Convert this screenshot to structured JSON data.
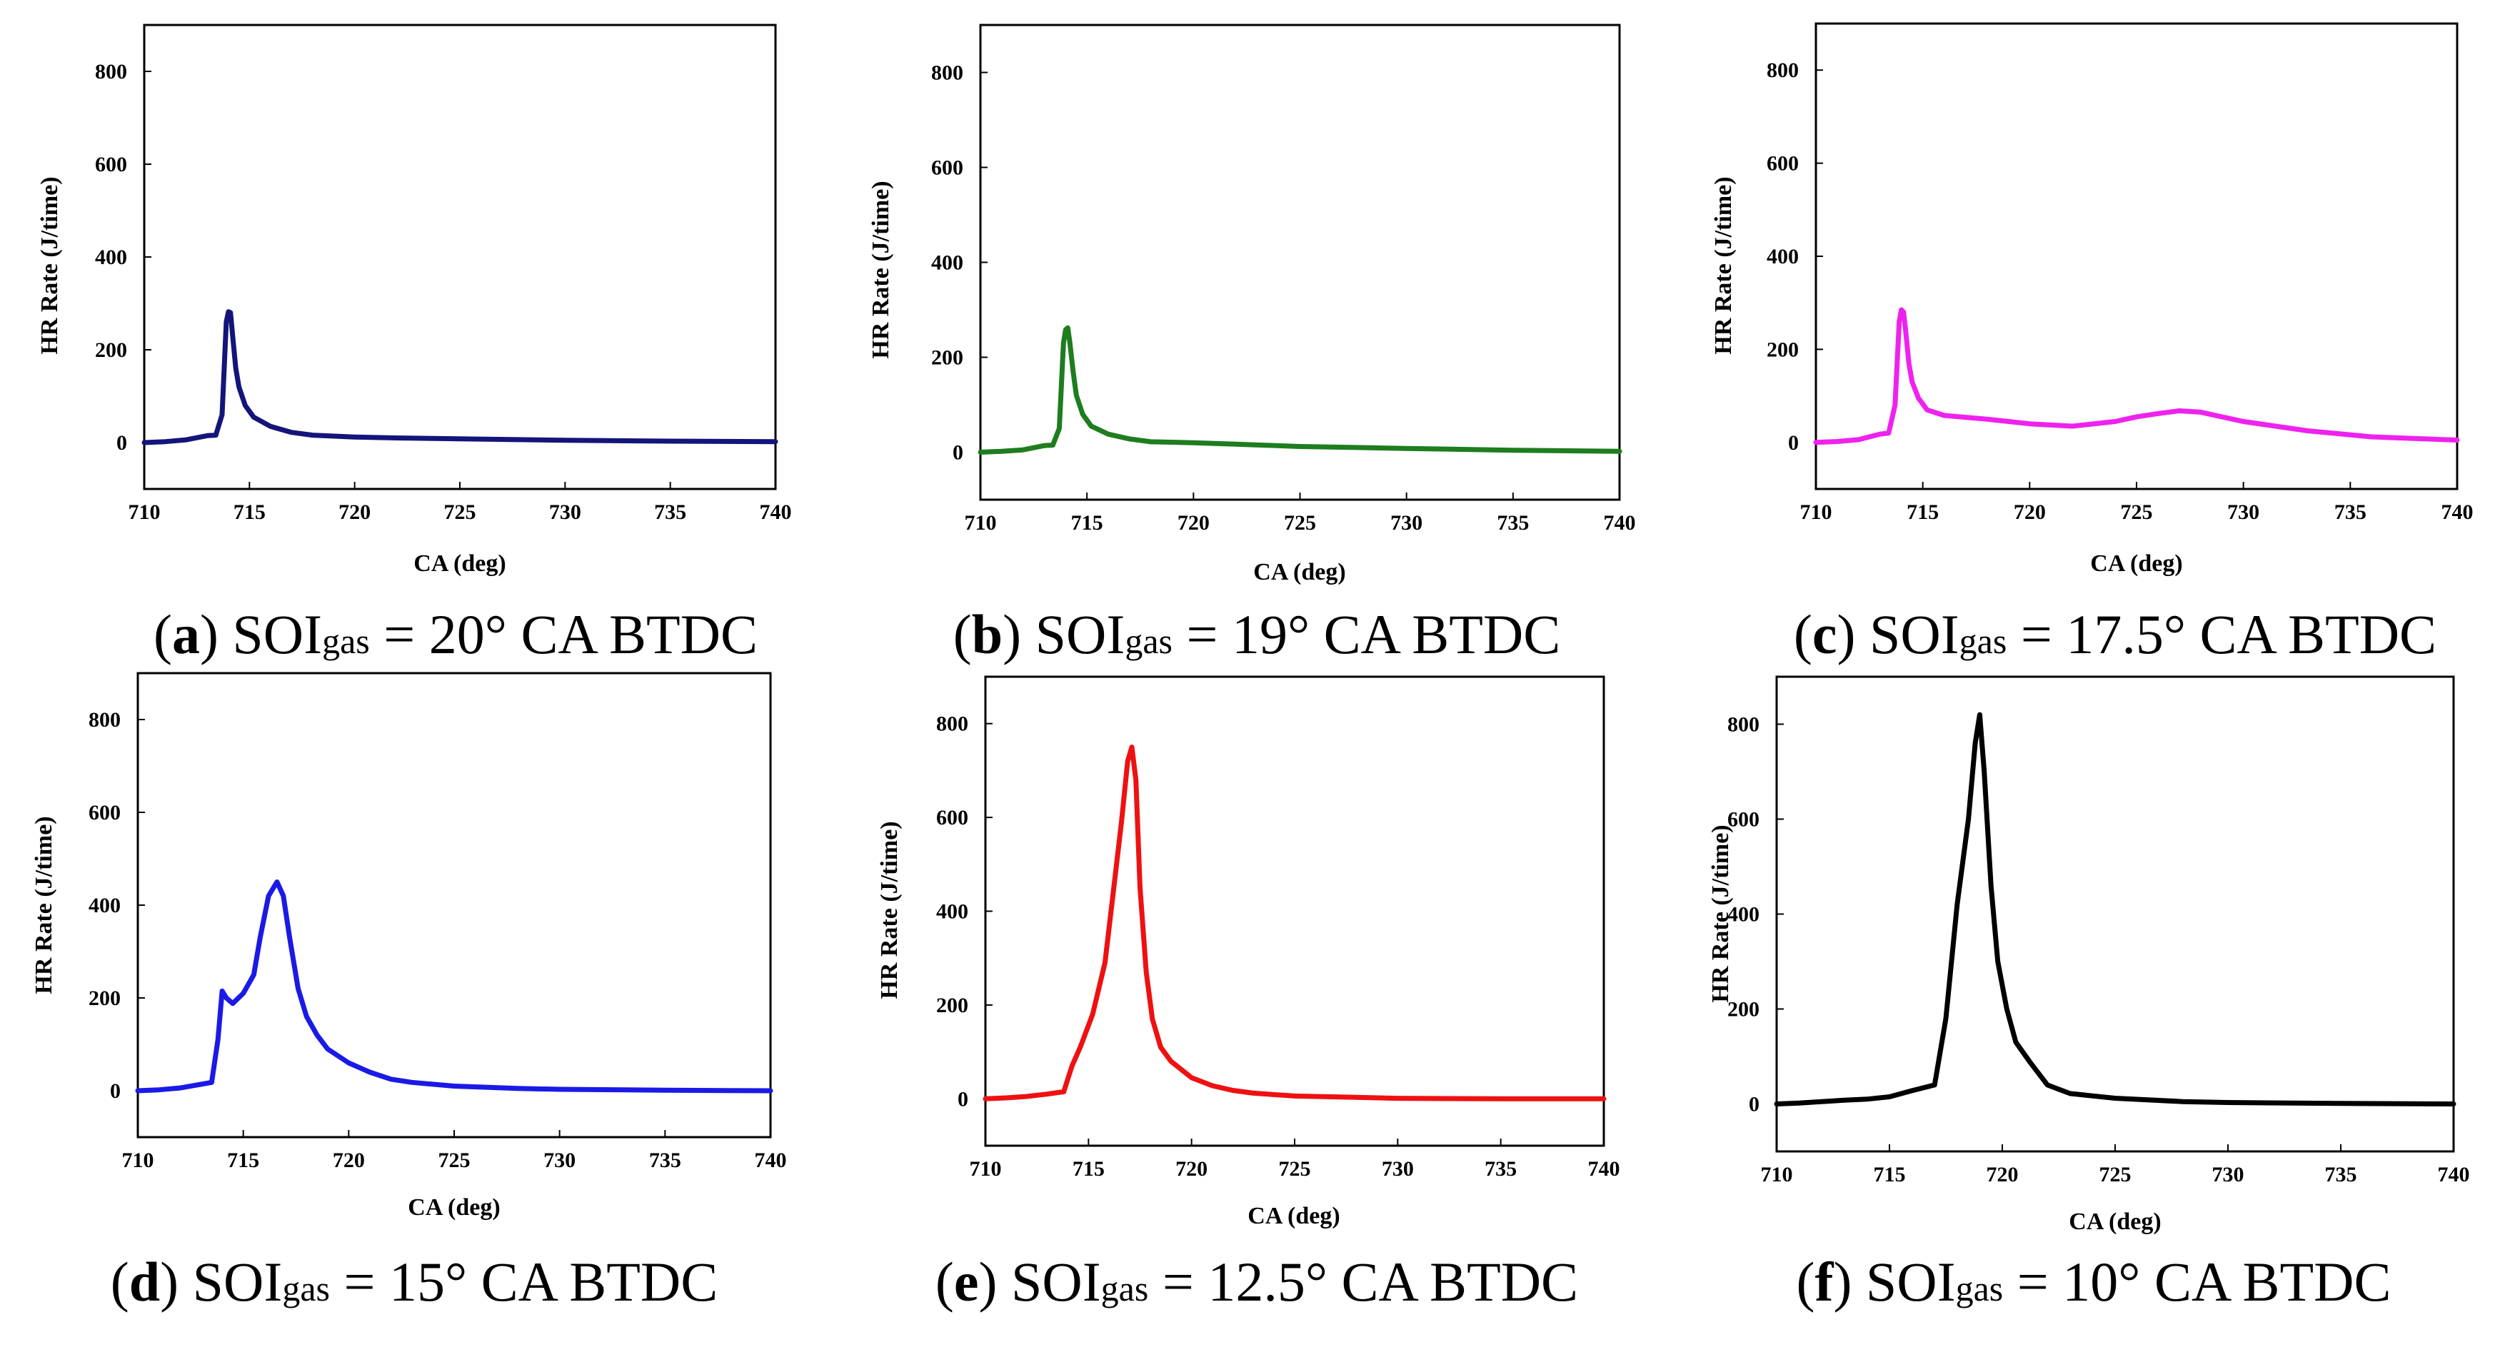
{
  "chart_data": [
    {
      "type": "line",
      "panel": "a",
      "caption": {
        "letter": "a",
        "main": "SOI",
        "sub": "gas",
        "rest": " = 20° CA BTDC"
      },
      "xlabel": "CA (deg)",
      "ylabel": "HR Rate (J/time)",
      "xlim": [
        710,
        740
      ],
      "ylim": [
        -100,
        900
      ],
      "xticks": [
        710,
        715,
        720,
        725,
        730,
        735,
        740
      ],
      "yticks": [
        0,
        200,
        400,
        600,
        800
      ],
      "color": "#14147a",
      "series": [
        {
          "name": "SOIgas = 20° CA BTDC",
          "x": [
            710,
            711,
            712,
            713,
            713.4,
            713.7,
            713.9,
            714.0,
            714.1,
            714.2,
            714.35,
            714.5,
            714.8,
            715.2,
            716,
            717,
            718,
            720,
            722,
            725,
            730,
            735,
            740
          ],
          "y": [
            0,
            2,
            6,
            15,
            16,
            60,
            260,
            282,
            280,
            230,
            160,
            120,
            80,
            55,
            35,
            22,
            16,
            12,
            10,
            8,
            5,
            3,
            2
          ]
        }
      ]
    },
    {
      "type": "line",
      "panel": "b",
      "caption": {
        "letter": "b",
        "main": "SOI",
        "sub": "gas",
        "rest": " = 19° CA BTDC"
      },
      "xlabel": "CA (deg)",
      "ylabel": "HR Rate (J/time)",
      "xlim": [
        710,
        740
      ],
      "ylim": [
        -100,
        900
      ],
      "xticks": [
        710,
        715,
        720,
        725,
        730,
        735,
        740
      ],
      "yticks": [
        0,
        200,
        400,
        600,
        800
      ],
      "color": "#1e7d1e",
      "series": [
        {
          "name": "SOIgas = 19° CA BTDC",
          "x": [
            710,
            711,
            712,
            713,
            713.4,
            713.7,
            713.9,
            714.0,
            714.1,
            714.2,
            714.35,
            714.5,
            714.8,
            715.2,
            716,
            717,
            718,
            720,
            722,
            725,
            730,
            735,
            740
          ],
          "y": [
            0,
            2,
            5,
            14,
            15,
            50,
            230,
            258,
            262,
            230,
            170,
            120,
            80,
            55,
            38,
            28,
            22,
            20,
            17,
            12,
            8,
            4,
            2
          ]
        }
      ]
    },
    {
      "type": "line",
      "panel": "c",
      "caption": {
        "letter": "c",
        "main": "SOI",
        "sub": "gas",
        "rest": " = 17.5° CA BTDC"
      },
      "xlabel": "CA (deg)",
      "ylabel": "HR Rate (J/time)",
      "xlim": [
        710,
        740
      ],
      "ylim": [
        -100,
        900
      ],
      "xticks": [
        710,
        715,
        720,
        725,
        730,
        735,
        740
      ],
      "yticks": [
        0,
        200,
        400,
        600,
        800
      ],
      "color": "#ee22ee",
      "series": [
        {
          "name": "SOIgas = 17.5° CA BTDC",
          "x": [
            710,
            711,
            712,
            713,
            713.4,
            713.7,
            713.9,
            714.0,
            714.1,
            714.2,
            714.35,
            714.5,
            714.8,
            715.2,
            716,
            717,
            718,
            720,
            722,
            724,
            725,
            726,
            727,
            728,
            730,
            733,
            736,
            740
          ],
          "y": [
            0,
            2,
            6,
            18,
            20,
            80,
            260,
            285,
            280,
            240,
            170,
            130,
            95,
            70,
            58,
            54,
            50,
            40,
            35,
            45,
            55,
            62,
            68,
            65,
            45,
            25,
            12,
            5
          ]
        }
      ]
    },
    {
      "type": "line",
      "panel": "d",
      "caption": {
        "letter": "d",
        "main": "SOI",
        "sub": "gas",
        "rest": " = 15° CA BTDC"
      },
      "xlabel": "CA (deg)",
      "ylabel": "HR Rate (J/time)",
      "xlim": [
        710,
        740
      ],
      "ylim": [
        -100,
        900
      ],
      "xticks": [
        710,
        715,
        720,
        725,
        730,
        735,
        740
      ],
      "yticks": [
        0,
        200,
        400,
        600,
        800
      ],
      "color": "#1a1ae6",
      "series": [
        {
          "name": "SOIgas = 15° CA BTDC",
          "x": [
            710,
            711,
            712,
            713,
            713.5,
            713.8,
            714.0,
            714.2,
            714.5,
            715,
            715.5,
            715.8,
            716.2,
            716.6,
            716.9,
            717.2,
            717.6,
            718,
            718.5,
            719,
            720,
            721,
            722,
            723,
            725,
            728,
            730,
            735,
            740
          ],
          "y": [
            0,
            2,
            6,
            14,
            18,
            110,
            215,
            200,
            188,
            210,
            250,
            330,
            420,
            450,
            420,
            330,
            220,
            160,
            120,
            90,
            60,
            40,
            25,
            18,
            10,
            5,
            3,
            1,
            0
          ]
        }
      ]
    },
    {
      "type": "line",
      "panel": "e",
      "caption": {
        "letter": "e",
        "main": "SOI",
        "sub": "gas",
        "rest": " = 12.5° CA BTDC"
      },
      "xlabel": "CA (deg)",
      "ylabel": "HR Rate (J/time)",
      "xlim": [
        710,
        740
      ],
      "ylim": [
        -100,
        900
      ],
      "xticks": [
        710,
        715,
        720,
        725,
        730,
        735,
        740
      ],
      "yticks": [
        0,
        200,
        400,
        600,
        800
      ],
      "color": "#ee1111",
      "series": [
        {
          "name": "SOIgas = 12.5° CA BTDC",
          "x": [
            710,
            711,
            712,
            713,
            713.8,
            714.2,
            714.6,
            715.2,
            715.8,
            716.2,
            716.6,
            716.9,
            717.1,
            717.3,
            717.5,
            717.8,
            718.1,
            718.5,
            719,
            720,
            721,
            722,
            723,
            725,
            728,
            730,
            735,
            740
          ],
          "y": [
            0,
            2,
            5,
            10,
            15,
            70,
            110,
            180,
            290,
            440,
            590,
            720,
            750,
            680,
            450,
            270,
            170,
            110,
            80,
            45,
            28,
            18,
            12,
            6,
            3,
            1,
            0,
            0
          ]
        }
      ]
    },
    {
      "type": "line",
      "panel": "f",
      "caption": {
        "letter": "f",
        "main": "SOI",
        "sub": "gas",
        "rest": " = 10° CA BTDC"
      },
      "xlabel": "CA (deg)",
      "ylabel": "HR Rate (J/time)",
      "xlim": [
        710,
        740
      ],
      "ylim": [
        -100,
        900
      ],
      "xticks": [
        710,
        715,
        720,
        725,
        730,
        735,
        740
      ],
      "yticks": [
        0,
        200,
        400,
        600,
        800
      ],
      "color": "#000000",
      "series": [
        {
          "name": "SOIgas = 10° CA BTDC",
          "x": [
            710,
            711,
            712,
            713,
            714,
            715,
            716,
            717,
            717.5,
            718,
            718.5,
            718.8,
            719.0,
            719.2,
            719.5,
            719.8,
            720.2,
            720.6,
            721.2,
            722,
            723,
            725,
            728,
            730,
            735,
            740
          ],
          "y": [
            0,
            2,
            5,
            8,
            10,
            15,
            28,
            40,
            180,
            420,
            600,
            760,
            820,
            700,
            460,
            300,
            200,
            130,
            90,
            40,
            22,
            12,
            5,
            3,
            1,
            0
          ]
        }
      ]
    }
  ]
}
